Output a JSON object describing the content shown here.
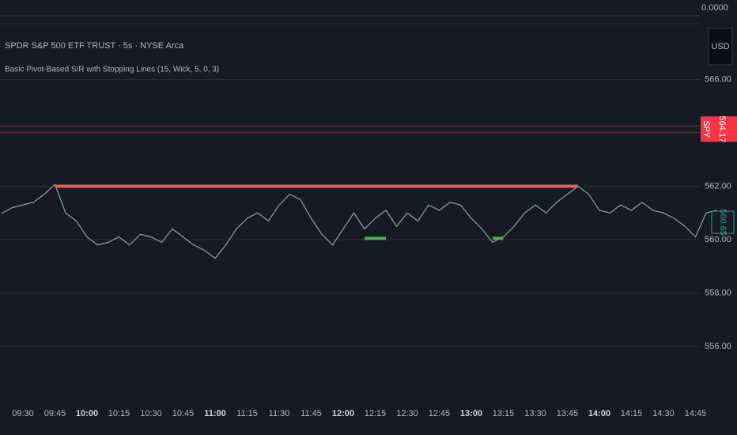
{
  "chart_data": {
    "type": "line",
    "title": "SPDR S&P 500 ETF TRUST · 5s · NYSE Arca",
    "subtitle": "Basic Pivot-Based S/R with Stopping Lines (15, Wick, 5, 0, 3)",
    "currency": "USD",
    "indicator_pane_label": "0.0000",
    "x": [
      "09:20",
      "09:25",
      "09:30",
      "09:35",
      "09:40",
      "09:45",
      "09:50",
      "09:55",
      "10:00",
      "10:05",
      "10:10",
      "10:15",
      "10:20",
      "10:25",
      "10:30",
      "10:35",
      "10:40",
      "10:45",
      "10:50",
      "10:55",
      "11:00",
      "11:05",
      "11:10",
      "11:15",
      "11:20",
      "11:25",
      "11:30",
      "11:35",
      "11:40",
      "11:45",
      "11:50",
      "11:55",
      "12:00",
      "12:05",
      "12:10",
      "12:15",
      "12:20",
      "12:25",
      "12:30",
      "12:35",
      "12:40",
      "12:45",
      "12:50",
      "12:55",
      "13:00",
      "13:05",
      "13:10",
      "13:15",
      "13:20",
      "13:25",
      "13:30",
      "13:35",
      "13:40",
      "13:45",
      "13:50",
      "13:55",
      "14:00",
      "14:05",
      "14:10",
      "14:15",
      "14:20",
      "14:25",
      "14:30",
      "14:35",
      "14:40",
      "14:45",
      "14:50",
      "14:55"
    ],
    "series": [
      {
        "name": "SPY",
        "color": "#7fa89f",
        "values": [
          560.98,
          561.2,
          561.3,
          561.4,
          561.7,
          562.07,
          561.0,
          560.7,
          560.1,
          559.8,
          559.9,
          560.1,
          559.8,
          560.2,
          560.1,
          559.9,
          560.4,
          560.1,
          559.8,
          559.6,
          559.3,
          559.8,
          560.4,
          560.8,
          561.0,
          560.7,
          561.3,
          561.7,
          561.5,
          560.8,
          560.2,
          559.8,
          560.4,
          561.0,
          560.4,
          560.8,
          561.1,
          560.5,
          561.0,
          560.7,
          561.3,
          561.1,
          561.4,
          561.3,
          560.8,
          560.4,
          559.9,
          560.1,
          560.5,
          561.0,
          561.3,
          561.0,
          561.4,
          561.7,
          562.0,
          561.7,
          561.1,
          561.0,
          561.3,
          561.1,
          561.4,
          561.1,
          561.0,
          560.8,
          560.5,
          560.1,
          561.0,
          561.1
        ]
      }
    ],
    "levels": [
      {
        "value": 562.0,
        "start": "09:45",
        "end": "13:50",
        "color": "#f05a5a"
      },
      {
        "value": 560.05,
        "start": "12:10",
        "end": "12:20",
        "color": "#4caf50"
      },
      {
        "value": 560.05,
        "start": "13:10",
        "end": "13:15",
        "color": "#4caf50"
      }
    ],
    "last_price": {
      "value": 560.65,
      "label": "560.65",
      "color": "#26a69a"
    },
    "symbol_tag": {
      "symbol": "SPY",
      "value": 564.17,
      "label": "564.17",
      "color": "#f23645"
    },
    "ylim": [
      554,
      568
    ],
    "yticks": [
      {
        "value": 556,
        "label": "556.00"
      },
      {
        "value": 558,
        "label": "558.00"
      },
      {
        "value": 560,
        "label": "560.00"
      },
      {
        "value": 562,
        "label": "562.00"
      },
      {
        "value": 566,
        "label": "566.00"
      }
    ],
    "xticks": [
      "09:30",
      "09:45",
      "10:00",
      "10:15",
      "10:30",
      "10:45",
      "11:00",
      "11:15",
      "11:30",
      "11:45",
      "12:00",
      "12:15",
      "12:30",
      "12:45",
      "13:00",
      "13:15",
      "13:30",
      "13:45",
      "14:00",
      "14:15",
      "14:30",
      "14:45"
    ],
    "grid": true
  }
}
